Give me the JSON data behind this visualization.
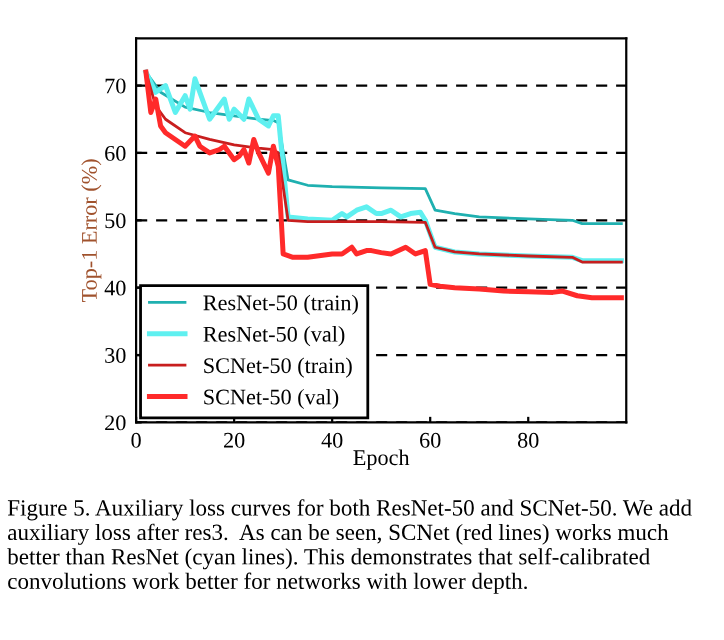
{
  "chart_data": {
    "type": "line",
    "xlabel": "Epoch",
    "ylabel": "Top-1 Error (%)",
    "xlim": [
      0,
      100
    ],
    "xticks": [
      0,
      20,
      40,
      60,
      80
    ],
    "ylim": [
      20,
      77
    ],
    "yticks": [
      20,
      30,
      40,
      50,
      60,
      70
    ],
    "grid": "y",
    "legend": "bottom left",
    "line_style": "solid",
    "marker": "none",
    "series": [
      {
        "name": "ResNet-50 (train)",
        "color": "#1fb0b0",
        "x": [
          2,
          5,
          10,
          15,
          20,
          25,
          28,
          29,
          31,
          35,
          40,
          50,
          59,
          61,
          65,
          70,
          80,
          89,
          91,
          95,
          99
        ],
        "values": [
          72,
          69,
          66.8,
          66,
          65.5,
          65,
          64.8,
          64.5,
          56,
          55.2,
          55,
          54.8,
          54.7,
          51.5,
          51,
          50.5,
          50.2,
          50,
          49.5,
          49.5,
          49.5
        ]
      },
      {
        "name": "ResNet-50 (val)",
        "color": "#5ff0f0",
        "x": [
          2,
          4,
          6,
          8,
          10,
          11,
          12,
          14,
          15,
          16,
          18,
          19,
          20,
          22,
          23,
          25,
          27,
          28,
          29,
          31,
          35,
          40,
          42,
          43,
          45,
          47,
          49,
          50,
          52,
          54,
          56,
          58,
          59,
          61,
          65,
          70,
          80,
          89,
          91,
          95,
          99
        ],
        "values": [
          72,
          69,
          70,
          66,
          68.5,
          66.5,
          71,
          67,
          65,
          66,
          68,
          65,
          66.5,
          65,
          68,
          65,
          64,
          65.5,
          65.5,
          50.5,
          50.2,
          50,
          51,
          50.5,
          51.5,
          52,
          51,
          51,
          51.5,
          50.5,
          51,
          51.2,
          50,
          46,
          45.3,
          45,
          44.7,
          44.5,
          44,
          44,
          44
        ]
      },
      {
        "name": "SCNet-50 (train)",
        "color": "#c81e1e",
        "x": [
          2,
          4,
          6,
          10,
          15,
          20,
          25,
          28,
          29,
          31,
          35,
          40,
          50,
          59,
          61,
          65,
          70,
          80,
          89,
          91,
          95,
          99
        ],
        "values": [
          72,
          67,
          65,
          63,
          62,
          61.2,
          60.7,
          60.5,
          60,
          50,
          49.8,
          49.8,
          49.8,
          49.7,
          46,
          45.3,
          45,
          44.7,
          44.5,
          43.8,
          43.8,
          43.8
        ]
      },
      {
        "name": "SCNet-50 (val)",
        "color": "#ff2a2a",
        "x": [
          2,
          3,
          4,
          5,
          6,
          8,
          10,
          12,
          13,
          15,
          17,
          18,
          20,
          21,
          22,
          23,
          24,
          25,
          27,
          28,
          29,
          30,
          32,
          35,
          40,
          42,
          44,
          45,
          47,
          48,
          50,
          52,
          55,
          57,
          59,
          60,
          62,
          65,
          70,
          75,
          80,
          85,
          87,
          90,
          93,
          99
        ],
        "values": [
          72,
          66,
          68,
          64,
          63,
          62,
          61,
          62.5,
          61,
          60,
          60.5,
          61,
          59,
          59.5,
          60.5,
          58.5,
          62,
          60,
          57,
          61,
          58,
          45,
          44.5,
          44.5,
          45,
          45,
          46,
          45,
          45.5,
          45.5,
          45.2,
          45,
          46,
          45,
          45.5,
          40.5,
          40.2,
          40,
          39.8,
          39.5,
          39.4,
          39.3,
          39.5,
          38.8,
          38.5,
          38.5
        ]
      }
    ],
    "annotations": [
      "Figure 5. Auxiliary loss curves for both ResNet-50 and SCNet-50. We add auxiliary loss after res3.  As can be seen, SCNet (red lines) works much better than ResNet (cyan lines). This demonstrates that self-calibrated convolutions work better for networks with lower depth."
    ]
  }
}
